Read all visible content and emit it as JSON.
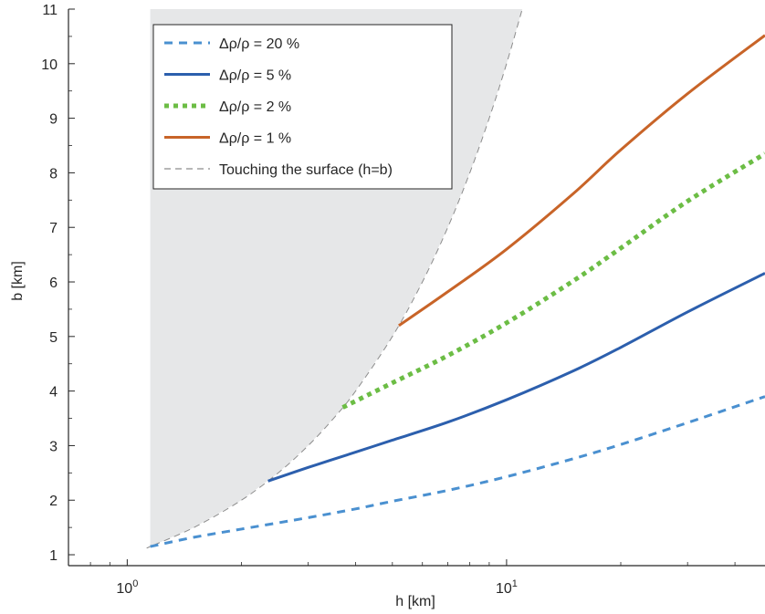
{
  "chart_data": {
    "type": "line",
    "title": "",
    "xlabel": "h [km]",
    "ylabel": "b [km]",
    "xscale": "log",
    "xlim": [
      0.7,
      48
    ],
    "ylim": [
      0.8,
      11
    ],
    "x_ticks": [
      {
        "value": 1,
        "base": "10",
        "exp": "0"
      },
      {
        "value": 10,
        "base": "10",
        "exp": "1"
      }
    ],
    "y_ticks": [
      "1",
      "2",
      "3",
      "4",
      "5",
      "6",
      "7",
      "8",
      "9",
      "10",
      "11"
    ],
    "grid": false,
    "legend_position": "top-left",
    "shaded_region": {
      "fill": "#e6e7e8",
      "description_label": "Touching the surface (h=b)",
      "boundary_x": [
        1.15,
        1.5,
        2,
        2.5,
        3,
        3.5,
        4,
        5,
        6,
        7,
        8,
        9,
        10,
        12,
        14,
        16,
        18,
        20,
        22,
        24
      ]
    },
    "series": [
      {
        "name": "Δρ/ρ = 20 %",
        "color": "#4a90d0",
        "style": "dashed",
        "x": [
          1.15,
          1.5,
          2,
          3,
          4,
          5,
          7,
          10,
          15,
          20,
          30,
          48
        ],
        "y": [
          1.15,
          1.32,
          1.47,
          1.68,
          1.84,
          1.98,
          2.18,
          2.43,
          2.76,
          3.02,
          3.42,
          3.9
        ]
      },
      {
        "name": "Δρ/ρ = 5 %",
        "color": "#2c5fad",
        "style": "solid",
        "x": [
          2.35,
          3,
          4,
          5,
          7,
          10,
          15,
          20,
          30,
          48
        ],
        "y": [
          2.35,
          2.6,
          2.88,
          3.1,
          3.43,
          3.84,
          4.37,
          4.8,
          5.45,
          6.16
        ]
      },
      {
        "name": "Δρ/ρ = 2 %",
        "color": "#6cbd45",
        "style": "dotted",
        "x": [
          3.7,
          5,
          7,
          10,
          15,
          20,
          30,
          48
        ],
        "y": [
          3.7,
          4.15,
          4.65,
          5.25,
          6.02,
          6.62,
          7.48,
          8.35
        ]
      },
      {
        "name": "Δρ/ρ = 1 %",
        "color": "#c86428",
        "style": "solid",
        "x": [
          5.2,
          7,
          10,
          15,
          20,
          30,
          48
        ],
        "y": [
          5.2,
          5.82,
          6.6,
          7.62,
          8.42,
          9.45,
          10.52
        ]
      }
    ],
    "legend_entries": [
      {
        "label": "Δρ/ρ = 20 %",
        "color": "#4a90d0",
        "style": "dashed"
      },
      {
        "label": "Δρ/ρ = 5 %",
        "color": "#2c5fad",
        "style": "solid"
      },
      {
        "label": "Δρ/ρ = 2 %",
        "color": "#6cbd45",
        "style": "dotted"
      },
      {
        "label": "Δρ/ρ = 1 %",
        "color": "#c86428",
        "style": "solid"
      },
      {
        "label": "Touching the surface (h=b)",
        "color": "#8c8c8c",
        "style": "dashed-gray"
      }
    ]
  }
}
